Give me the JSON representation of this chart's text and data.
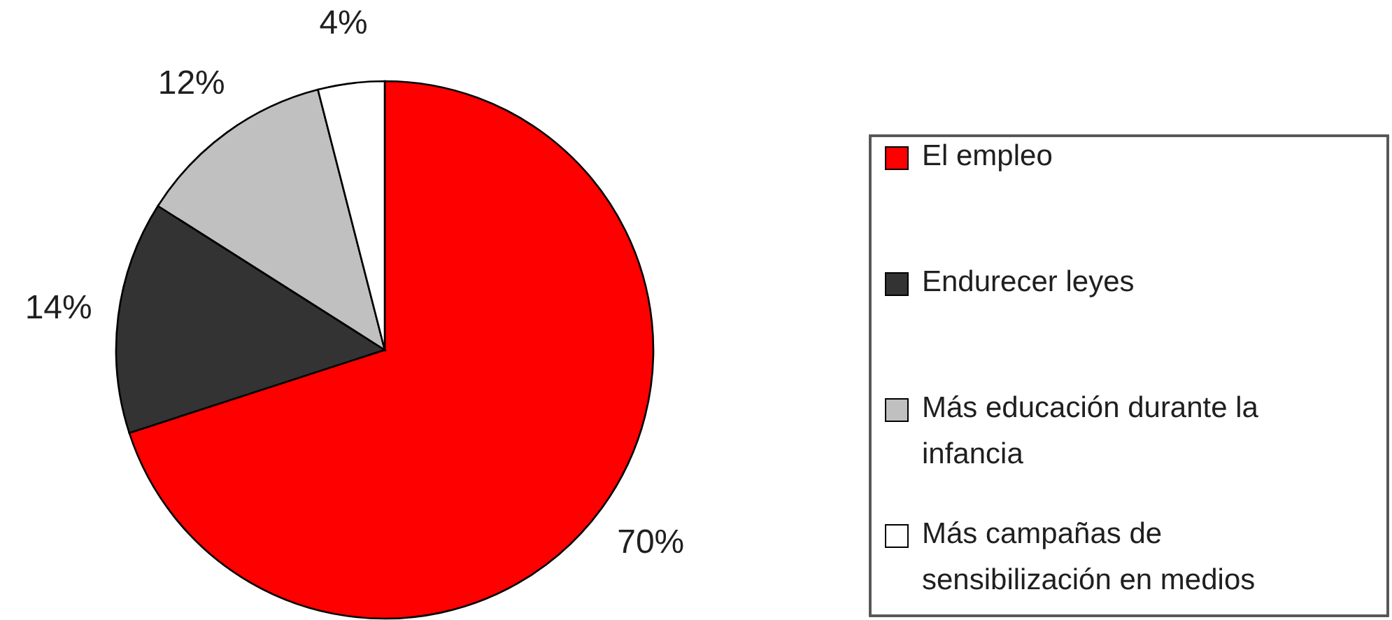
{
  "chart_data": {
    "type": "pie",
    "categories": [
      "El empleo",
      "Endurecer leyes",
      "Más educación durante la infancia",
      "Más campañas de sensibilización en medios"
    ],
    "values": [
      70,
      14,
      12,
      4
    ],
    "colors": [
      "#ff0000",
      "#333333",
      "#c0c0c0",
      "#ffffff"
    ],
    "value_labels": [
      "70%",
      "14%",
      "12%",
      "4%"
    ],
    "legend": "right"
  }
}
